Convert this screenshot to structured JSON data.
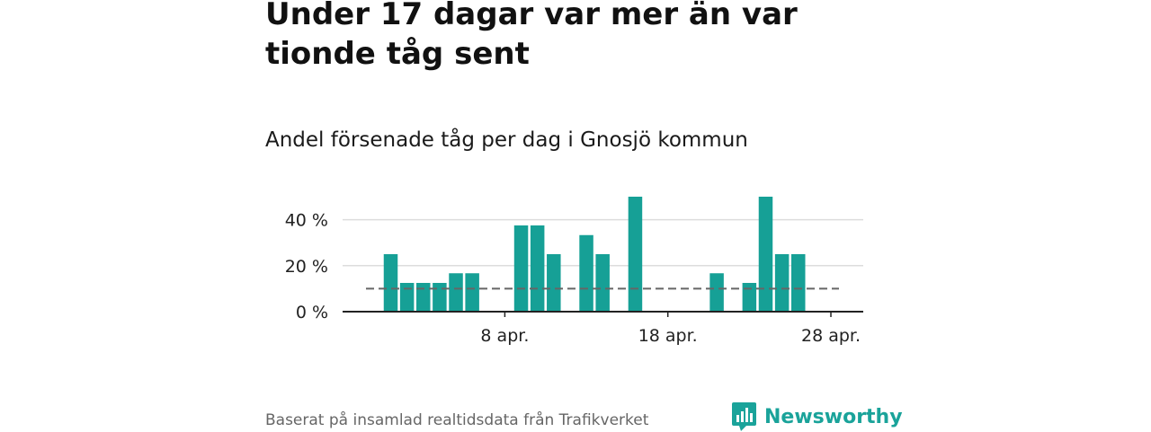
{
  "title": "Under 17 dagar var mer än var tionde tåg sent",
  "subtitle": "Andel försenade tåg per dag i Gnosjö kommun",
  "footer": "Baserat på insamlad realtidsdata från Trafikverket",
  "brand": {
    "name": "Newsworthy",
    "color": "#1aa39a"
  },
  "colors": {
    "bar": "#16a096",
    "reference_line": "#666666",
    "grid": "#dddddd",
    "axis": "#222222"
  },
  "chart_data": {
    "type": "bar",
    "title": "Andel försenade tåg per dag i Gnosjö kommun",
    "xlabel": "",
    "ylabel": "",
    "x_start_date": "2024-03-31",
    "categories": [
      "1 apr.",
      "2 apr.",
      "3 apr.",
      "4 apr.",
      "5 apr.",
      "6 apr.",
      "7 apr.",
      "8 apr.",
      "9 apr.",
      "10 apr.",
      "11 apr.",
      "12 apr.",
      "13 apr.",
      "14 apr.",
      "15 apr.",
      "16 apr.",
      "17 apr.",
      "18 apr.",
      "19 apr.",
      "20 apr.",
      "21 apr.",
      "22 apr.",
      "23 apr.",
      "24 apr.",
      "25 apr.",
      "26 apr.",
      "27 apr.",
      "28 apr.",
      "29 apr."
    ],
    "values": [
      25,
      12.5,
      12.5,
      12.5,
      16.7,
      16.7,
      0,
      0,
      37.5,
      37.5,
      25,
      0,
      33.3,
      25,
      0,
      50,
      0,
      0,
      0,
      0,
      16.7,
      0,
      12.5,
      50,
      25,
      25,
      0,
      0,
      0
    ],
    "x_ticks": [
      "8 apr.",
      "18 apr.",
      "28 apr."
    ],
    "y_ticks": [
      "0 %",
      "20 %",
      "40 %"
    ],
    "ylim": [
      0,
      50
    ],
    "reference_line": {
      "value": 10,
      "style": "dashed"
    },
    "grid": true
  }
}
